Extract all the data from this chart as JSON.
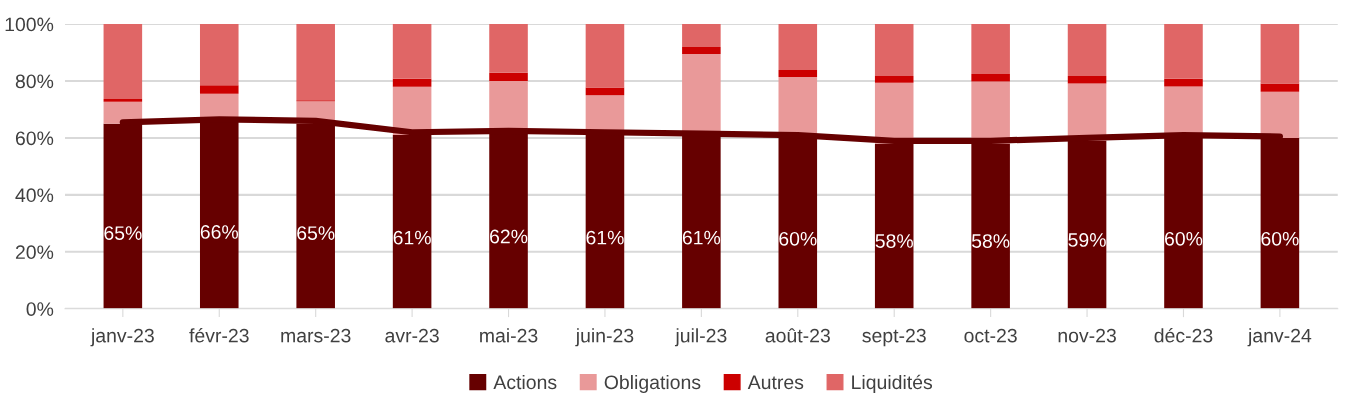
{
  "chart_data": {
    "type": "bar",
    "stacked": true,
    "categories": [
      "janv-23",
      "févr-23",
      "mars-23",
      "avr-23",
      "mai-23",
      "juin-23",
      "juil-23",
      "août-23",
      "sept-23",
      "oct-23",
      "nov-23",
      "déc-23",
      "janv-24"
    ],
    "series": [
      {
        "name": "Actions",
        "color": "#660000",
        "values": [
          65,
          66,
          65,
          61,
          62,
          61,
          61,
          60,
          58,
          58,
          59,
          60,
          60
        ],
        "value_labels": [
          "65%",
          "66%",
          "65%",
          "61%",
          "62%",
          "61%",
          "61%",
          "60%",
          "58%",
          "58%",
          "59%",
          "60%",
          "60%"
        ]
      },
      {
        "name": "Obligations",
        "color": "#e99999",
        "values": [
          7.7,
          9.5,
          7.9,
          17,
          18,
          14,
          28.5,
          21.4,
          21.4,
          21.8,
          20.1,
          18.1,
          16.2
        ]
      },
      {
        "name": "Autres",
        "color": "#cc0000",
        "values": [
          1,
          3,
          0.3,
          2.8,
          2.9,
          2.7,
          2.4,
          2.5,
          2.4,
          2.7,
          2.7,
          2.7,
          2.9
        ]
      },
      {
        "name": "Liquidités",
        "color": "#e06666",
        "values": [
          26.3,
          21.5,
          26.8,
          19.2,
          17.1,
          22.3,
          8.1,
          16.1,
          18.2,
          17.5,
          18.2,
          19.2,
          20.9
        ]
      },
      {
        "type": "line",
        "color": "#660000",
        "values": [
          65.5,
          66.5,
          66,
          62,
          62.5,
          62,
          61.5,
          61,
          59,
          59,
          60,
          61,
          60.5
        ]
      }
    ],
    "ylim": [
      0,
      100
    ],
    "yticks": [
      {
        "value": 0,
        "label": "0%"
      },
      {
        "value": 20,
        "label": "20%"
      },
      {
        "value": 40,
        "label": "40%"
      },
      {
        "value": 60,
        "label": "60%"
      },
      {
        "value": 80,
        "label": "80%"
      },
      {
        "value": 100,
        "label": "100%"
      }
    ],
    "grid": "y",
    "legend": "bottom",
    "marker": "none",
    "line_style": "solid"
  }
}
